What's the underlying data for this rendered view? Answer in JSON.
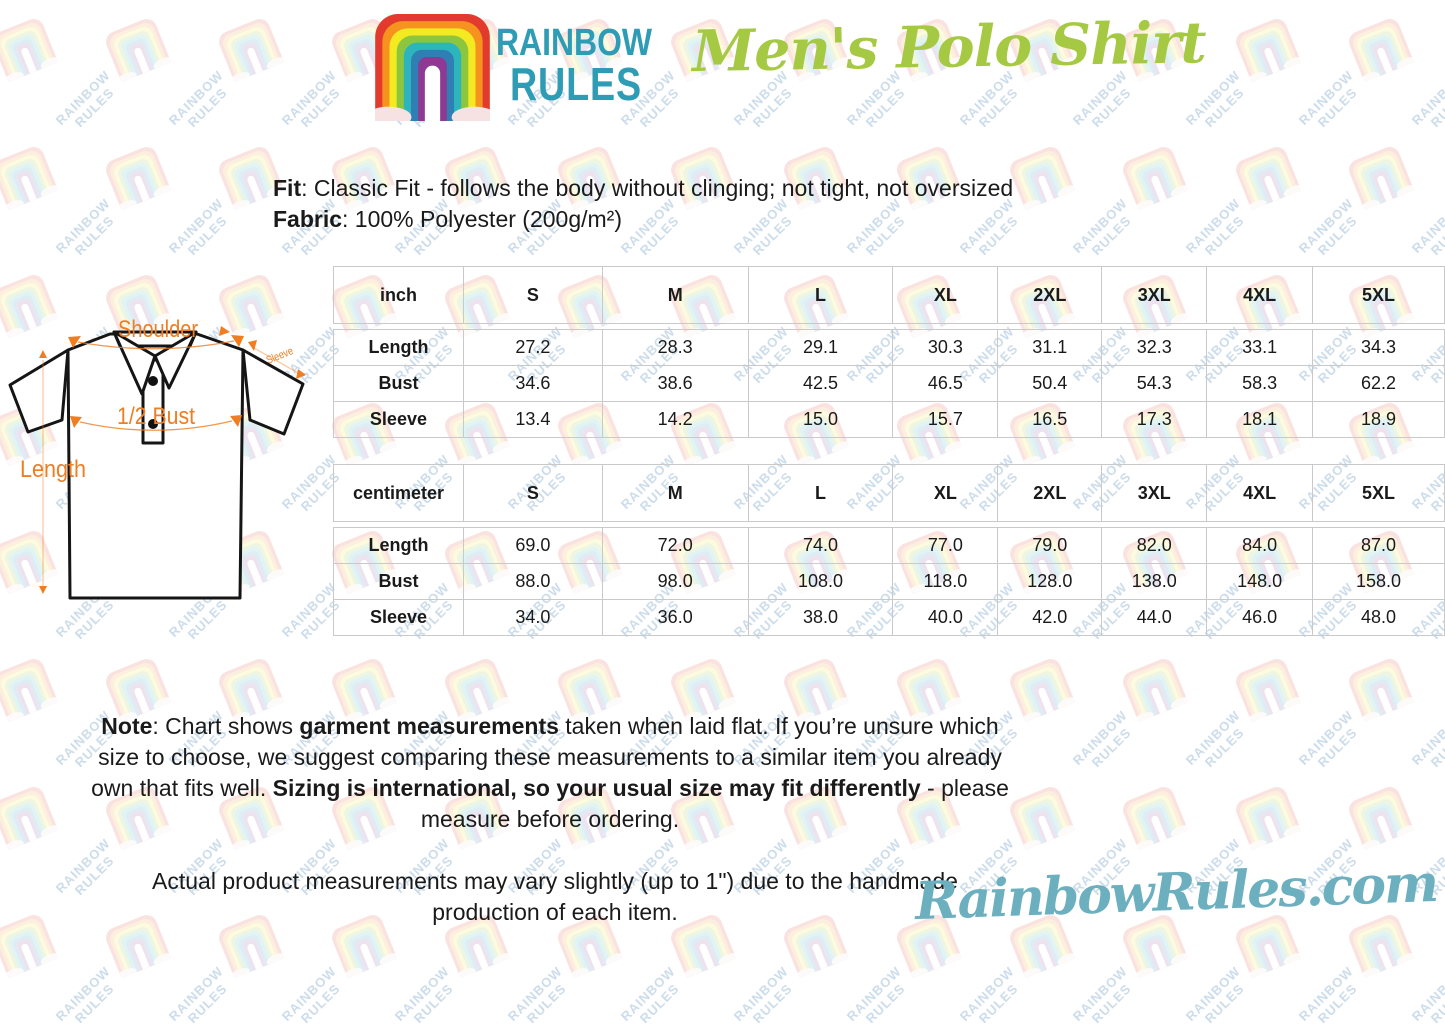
{
  "header": {
    "brand_line1": "RAINBOW",
    "brand_line2": "RULES",
    "title": "Men's Polo Shirt"
  },
  "product": {
    "fit_label": "Fit",
    "fit_text": ": Classic Fit - follows the body without clinging; not tight, not oversized",
    "fabric_label": "Fabric",
    "fabric_text": ": 100% Polyester (200g/m²)"
  },
  "diagram": {
    "shoulder_label": "Shoulder",
    "sleeve_label": "Sleeve",
    "half_bust_label": "1/2 Bust",
    "length_label": "Length"
  },
  "tables": [
    {
      "unit": "inch",
      "sizes": [
        "S",
        "M",
        "L",
        "XL",
        "2XL",
        "3XL",
        "4XL",
        "5XL"
      ],
      "rows": [
        {
          "label": "Length",
          "values": [
            "27.2",
            "28.3",
            "29.1",
            "30.3",
            "31.1",
            "32.3",
            "33.1",
            "34.3"
          ]
        },
        {
          "label": "Bust",
          "values": [
            "34.6",
            "38.6",
            "42.5",
            "46.5",
            "50.4",
            "54.3",
            "58.3",
            "62.2"
          ]
        },
        {
          "label": "Sleeve",
          "values": [
            "13.4",
            "14.2",
            "15.0",
            "15.7",
            "16.5",
            "17.3",
            "18.1",
            "18.9"
          ]
        }
      ]
    },
    {
      "unit": "centimeter",
      "sizes": [
        "S",
        "M",
        "L",
        "XL",
        "2XL",
        "3XL",
        "4XL",
        "5XL"
      ],
      "rows": [
        {
          "label": "Length",
          "values": [
            "69.0",
            "72.0",
            "74.0",
            "77.0",
            "79.0",
            "82.0",
            "84.0",
            "87.0"
          ]
        },
        {
          "label": "Bust",
          "values": [
            "88.0",
            "98.0",
            "108.0",
            "118.0",
            "128.0",
            "138.0",
            "148.0",
            "158.0"
          ]
        },
        {
          "label": "Sleeve",
          "values": [
            "34.0",
            "36.0",
            "38.0",
            "40.0",
            "42.0",
            "44.0",
            "46.0",
            "48.0"
          ]
        }
      ]
    }
  ],
  "note": {
    "segments": [
      {
        "t": "Note",
        "b": true
      },
      {
        "t": ": Chart shows ",
        "b": false
      },
      {
        "t": "garment measurements",
        "b": true
      },
      {
        "t": " taken when laid flat. If you’re unsure which size to choose, we suggest comparing these measurements to a similar item you already own that fits well. ",
        "b": false
      },
      {
        "t": "Sizing is international, so your usual size may fit differently",
        "b": true
      },
      {
        "t": " - please measure before ordering.",
        "b": false
      }
    ]
  },
  "footer_note": {
    "text": "Actual product measurements may vary slightly (up to 1\") due to the handmade production of each item."
  },
  "footer": {
    "site": "RainbowRules.com"
  },
  "watermark": {
    "line1": "RAINBOW",
    "line2": "RULES"
  },
  "colors": {
    "brand_teal": "#2d9cb4",
    "title_green": "#a5c943",
    "annotation_orange": "#ef7d22",
    "table_border": "#c9c9c9",
    "site_teal": "#6cb0bf",
    "watermark_blue": "#9abbd6",
    "cloud_pink": "#f6e2e3",
    "rainbow": [
      "#e23b2e",
      "#f6921e",
      "#f3ea22",
      "#8cc63e",
      "#2cb5bc",
      "#2f7fb5",
      "#8e3a94"
    ]
  }
}
